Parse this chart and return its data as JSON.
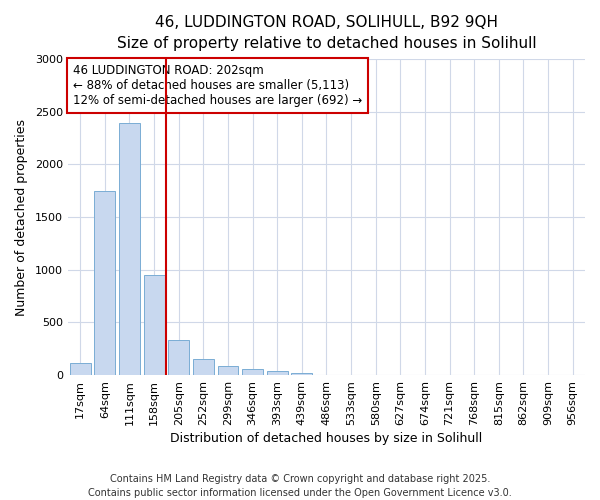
{
  "title_line1": "46, LUDDINGTON ROAD, SOLIHULL, B92 9QH",
  "title_line2": "Size of property relative to detached houses in Solihull",
  "xlabel": "Distribution of detached houses by size in Solihull",
  "ylabel": "Number of detached properties",
  "categories": [
    "17sqm",
    "64sqm",
    "111sqm",
    "158sqm",
    "205sqm",
    "252sqm",
    "299sqm",
    "346sqm",
    "393sqm",
    "439sqm",
    "486sqm",
    "533sqm",
    "580sqm",
    "627sqm",
    "674sqm",
    "721sqm",
    "768sqm",
    "815sqm",
    "862sqm",
    "909sqm",
    "956sqm"
  ],
  "values": [
    115,
    1750,
    2390,
    950,
    335,
    150,
    85,
    55,
    35,
    20,
    5,
    0,
    0,
    0,
    0,
    0,
    0,
    0,
    0,
    0,
    0
  ],
  "bar_color": "#c8d8ef",
  "bar_edge_color": "#7aadd4",
  "vline_color": "#cc0000",
  "vline_x": 3.5,
  "annotation_line1": "46 LUDDINGTON ROAD: 202sqm",
  "annotation_line2": "← 88% of detached houses are smaller (5,113)",
  "annotation_line3": "12% of semi-detached houses are larger (692) →",
  "annotation_box_color": "#cc0000",
  "ylim": [
    0,
    3000
  ],
  "yticks": [
    0,
    500,
    1000,
    1500,
    2000,
    2500,
    3000
  ],
  "background_color": "#ffffff",
  "plot_bg_color": "#ffffff",
  "grid_color": "#d0d8e8",
  "footer_text": "Contains HM Land Registry data © Crown copyright and database right 2025.\nContains public sector information licensed under the Open Government Licence v3.0.",
  "title_fontsize": 11,
  "subtitle_fontsize": 10,
  "tick_fontsize": 8,
  "label_fontsize": 9,
  "annotation_fontsize": 8.5,
  "footer_fontsize": 7
}
